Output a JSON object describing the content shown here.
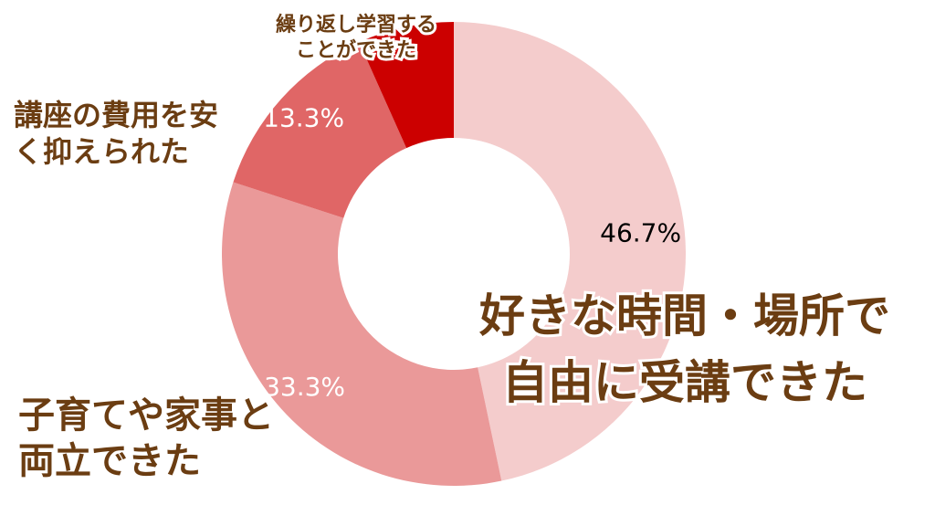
{
  "chart_data": {
    "type": "pie",
    "categories": [
      "好きな時間・場所で\n自由に受講できた",
      "子育てや家事と\n両立できた",
      "講座の費用を安\nく抑えられた",
      "繰り返し学習する\nことができた"
    ],
    "values": [
      46.7,
      33.3,
      13.3,
      6.7
    ],
    "value_labels": [
      "46.7%",
      "33.3%",
      "13.3%",
      null
    ],
    "colors": [
      "#f4cccc",
      "#ea9999",
      "#e06666",
      "#cc0000"
    ]
  }
}
